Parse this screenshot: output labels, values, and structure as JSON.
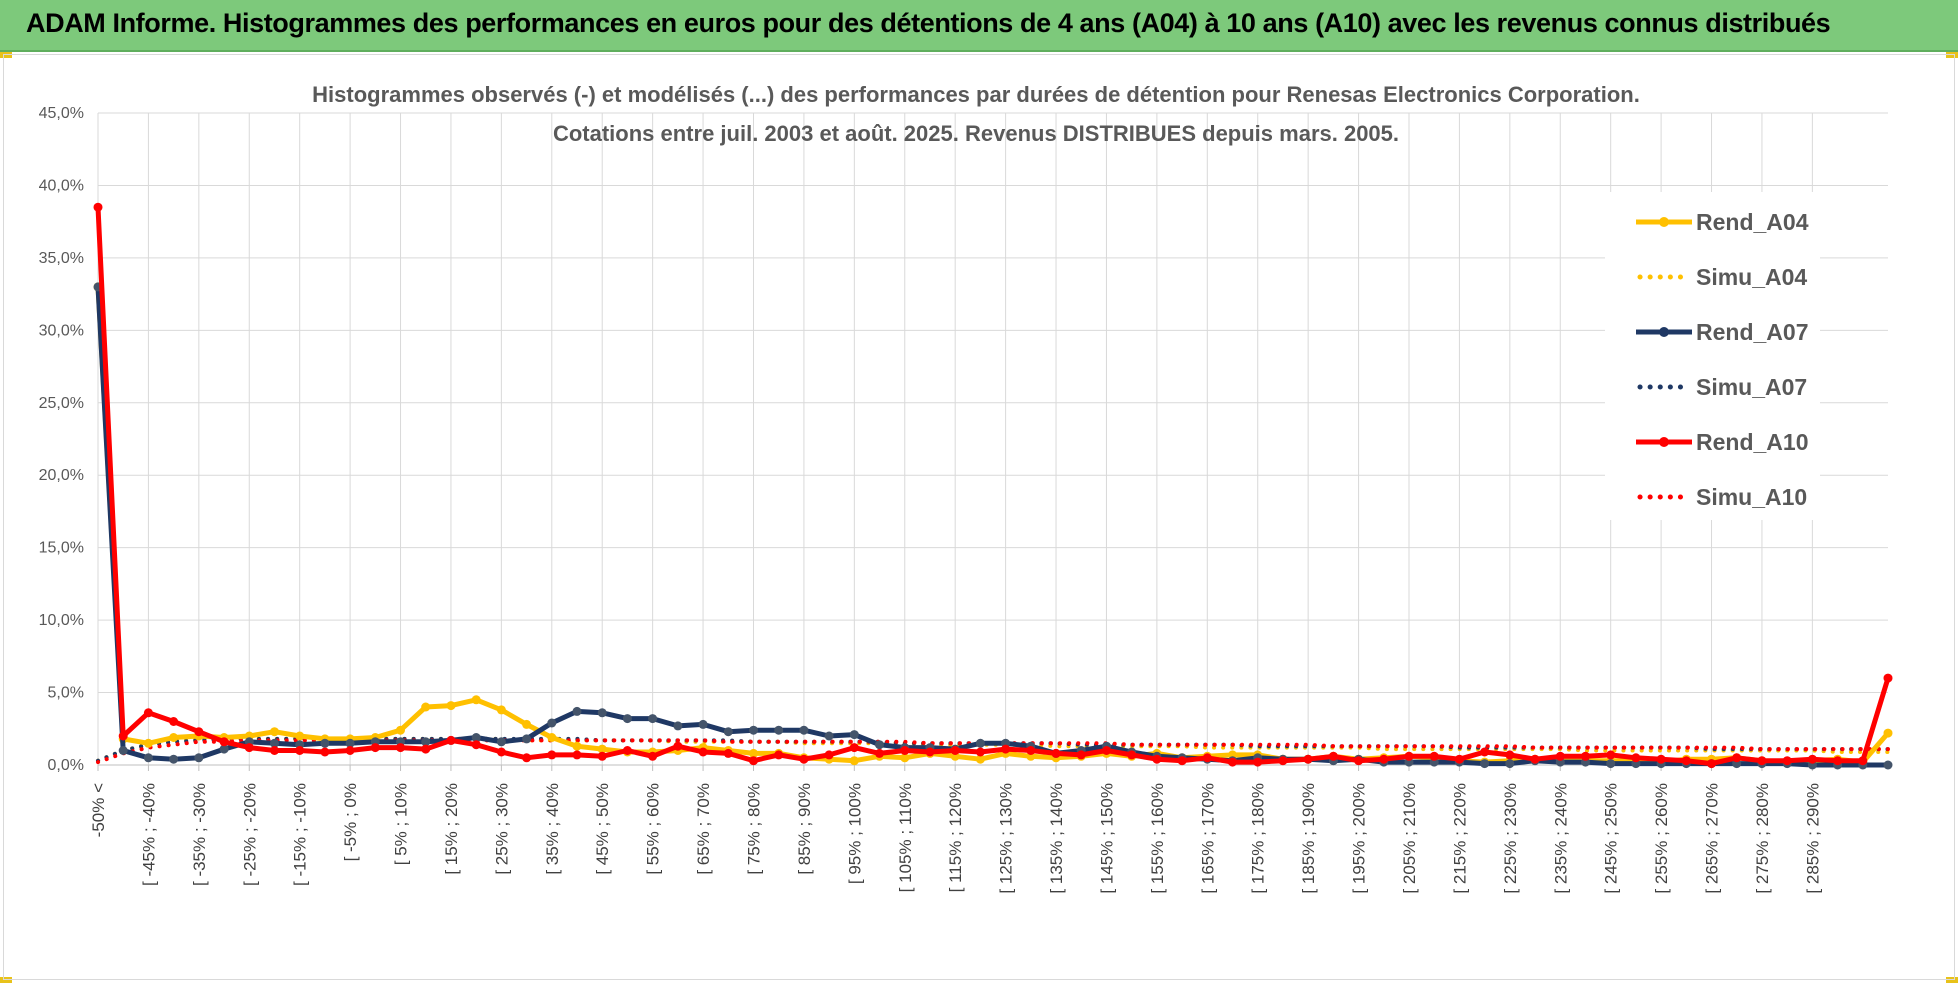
{
  "header": {
    "title": "ADAM Informe. Histogrammes des performances en euros pour des détentions de 4 ans (A04) à 10 ans (A10) avec les revenus connus distribués",
    "background": "#7dc97b"
  },
  "chart_data": {
    "type": "line",
    "title": "Histogrammes observés (-) et modélisés (...) des performances par durées de détention pour Renesas Electronics Corporation.",
    "subtitle": "Cotations entre juil. 2003 et août. 2025. Revenus DISTRIBUES depuis mars. 2005.",
    "xlabel": "",
    "ylabel": "",
    "ylim": [
      0,
      45
    ],
    "y_ticks": [
      "0,0%",
      "5,0%",
      "10,0%",
      "15,0%",
      "20,0%",
      "25,0%",
      "30,0%",
      "35,0%",
      "40,0%",
      "45,0%"
    ],
    "grid": true,
    "legend_position": "top-right",
    "x_tick_labels": [
      "-50% <",
      "[ -45% ; -40%",
      "[ -35% ; -30%",
      "[ -25% ; -20%",
      "[ -15% ; -10%",
      "[ -5% ; 0%",
      "[ 5% ; 10%",
      "[ 15% ; 20%",
      "[ 25% ; 30%",
      "[ 35% ; 40%",
      "[ 45% ; 50%",
      "[ 55% ; 60%",
      "[ 65% ; 70%",
      "[ 75% ; 80%",
      "[ 85% ; 90%",
      "[ 95% ; 100%",
      "[ 105% ; 110%",
      "[ 115% ; 120%",
      "[ 125% ; 130%",
      "[ 135% ; 140%",
      "[ 145% ; 150%",
      "[ 155% ; 160%",
      "[ 165% ; 170%",
      "[ 175% ; 180%",
      "[ 185% ; 190%",
      "[ 195% ; 200%",
      "[ 205% ; 210%",
      "[ 215% ; 220%",
      "[ 225% ; 230%",
      "[ 235% ; 240%",
      "[ 245% ; 250%",
      "[ 255% ; 260%",
      "[ 265% ; 270%",
      "[ 275% ; 280%",
      "[ 285% ; 290%"
    ],
    "series": [
      {
        "name": "Rend_A04",
        "style": "solid",
        "color": "#ffc000",
        "values": [
          33.0,
          1.8,
          1.5,
          1.9,
          2.0,
          1.9,
          2.0,
          2.3,
          2.0,
          1.8,
          1.8,
          1.9,
          2.4,
          4.0,
          4.1,
          4.5,
          3.8,
          2.8,
          1.9,
          1.3,
          1.1,
          0.9,
          0.9,
          1.0,
          1.2,
          1.0,
          0.8,
          0.8,
          0.5,
          0.4,
          0.3,
          0.6,
          0.5,
          0.8,
          0.6,
          0.4,
          0.8,
          0.6,
          0.5,
          0.6,
          0.8,
          0.6,
          0.8,
          0.5,
          0.6,
          0.7,
          0.7,
          0.4,
          0.4,
          0.6,
          0.4,
          0.5,
          0.6,
          0.5,
          0.3,
          0.2,
          0.3,
          0.4,
          0.4,
          0.3,
          0.3,
          0.3,
          0.2,
          0.4,
          0.4,
          0.5,
          0.3,
          0.2,
          0.3,
          0.4,
          0.2,
          2.2
        ]
      },
      {
        "name": "Simu_A04",
        "style": "dotted",
        "color": "#ffc000",
        "values": [
          0.3,
          1.0,
          1.4,
          1.7,
          1.8,
          1.8,
          1.8,
          1.8,
          1.8,
          1.8,
          1.8,
          1.8,
          1.8,
          1.8,
          1.8,
          1.8,
          1.8,
          1.7,
          1.7,
          1.7,
          1.7,
          1.7,
          1.7,
          1.6,
          1.6,
          1.6,
          1.6,
          1.6,
          1.5,
          1.5,
          1.5,
          1.5,
          1.5,
          1.4,
          1.4,
          1.4,
          1.4,
          1.4,
          1.3,
          1.3,
          1.3,
          1.3,
          1.3,
          1.3,
          1.2,
          1.2,
          1.2,
          1.2,
          1.2,
          1.2,
          1.2,
          1.1,
          1.1,
          1.1,
          1.1,
          1.1,
          1.1,
          1.1,
          1.1,
          1.0,
          1.0,
          1.0,
          1.0,
          1.0,
          1.0,
          1.0,
          1.0,
          1.0,
          1.0,
          0.9,
          0.9,
          0.9
        ]
      },
      {
        "name": "Rend_A07",
        "style": "solid",
        "color": "#1f3864",
        "values": [
          33.0,
          1.0,
          0.5,
          0.4,
          0.5,
          1.1,
          1.6,
          1.5,
          1.4,
          1.5,
          1.5,
          1.6,
          1.6,
          1.6,
          1.7,
          1.9,
          1.6,
          1.8,
          2.9,
          3.7,
          3.6,
          3.2,
          3.2,
          2.7,
          2.8,
          2.3,
          2.4,
          2.4,
          2.4,
          2.0,
          2.1,
          1.4,
          1.2,
          1.2,
          1.1,
          1.5,
          1.5,
          1.3,
          0.8,
          1.0,
          1.3,
          0.9,
          0.6,
          0.5,
          0.4,
          0.3,
          0.5,
          0.4,
          0.4,
          0.3,
          0.4,
          0.2,
          0.2,
          0.2,
          0.2,
          0.1,
          0.1,
          0.3,
          0.2,
          0.2,
          0.1,
          0.1,
          0.1,
          0.1,
          0.1,
          0.1,
          0.1,
          0.1,
          0.0,
          0.0,
          0.0,
          0.0
        ]
      },
      {
        "name": "Simu_A07",
        "style": "dotted",
        "color": "#1f3864",
        "values": [
          0.3,
          1.0,
          1.4,
          1.6,
          1.7,
          1.8,
          1.8,
          1.8,
          1.8,
          1.8,
          1.8,
          1.8,
          1.8,
          1.8,
          1.8,
          1.8,
          1.8,
          1.8,
          1.8,
          1.8,
          1.7,
          1.7,
          1.7,
          1.7,
          1.7,
          1.7,
          1.6,
          1.6,
          1.6,
          1.6,
          1.6,
          1.6,
          1.5,
          1.5,
          1.5,
          1.5,
          1.5,
          1.5,
          1.5,
          1.4,
          1.4,
          1.4,
          1.4,
          1.4,
          1.4,
          1.4,
          1.3,
          1.3,
          1.3,
          1.3,
          1.3,
          1.3,
          1.3,
          1.3,
          1.2,
          1.2,
          1.2,
          1.2,
          1.2,
          1.2,
          1.2,
          1.2,
          1.2,
          1.2,
          1.1,
          1.1,
          1.1,
          1.1,
          1.1,
          1.1,
          1.1,
          1.1
        ]
      },
      {
        "name": "Rend_A10",
        "style": "solid",
        "color": "#ff0000",
        "values": [
          38.5,
          2.0,
          3.6,
          3.0,
          2.3,
          1.6,
          1.2,
          1.0,
          1.0,
          0.9,
          1.0,
          1.2,
          1.2,
          1.1,
          1.7,
          1.4,
          0.9,
          0.5,
          0.7,
          0.7,
          0.6,
          1.0,
          0.6,
          1.3,
          0.9,
          0.8,
          0.3,
          0.7,
          0.4,
          0.7,
          1.2,
          0.8,
          1.0,
          0.9,
          1.0,
          0.9,
          1.1,
          1.0,
          0.8,
          0.7,
          1.0,
          0.7,
          0.4,
          0.3,
          0.5,
          0.2,
          0.2,
          0.3,
          0.4,
          0.6,
          0.3,
          0.4,
          0.6,
          0.6,
          0.4,
          0.9,
          0.7,
          0.4,
          0.6,
          0.6,
          0.7,
          0.5,
          0.4,
          0.3,
          0.1,
          0.5,
          0.3,
          0.3,
          0.4,
          0.3,
          0.3,
          6.0
        ]
      },
      {
        "name": "Simu_A10",
        "style": "dotted",
        "color": "#ff0000",
        "values": [
          0.2,
          0.8,
          1.2,
          1.4,
          1.6,
          1.6,
          1.7,
          1.7,
          1.7,
          1.7,
          1.7,
          1.7,
          1.7,
          1.7,
          1.7,
          1.7,
          1.7,
          1.7,
          1.7,
          1.7,
          1.7,
          1.7,
          1.7,
          1.7,
          1.7,
          1.6,
          1.6,
          1.6,
          1.6,
          1.6,
          1.6,
          1.6,
          1.6,
          1.5,
          1.5,
          1.5,
          1.5,
          1.5,
          1.5,
          1.5,
          1.5,
          1.4,
          1.4,
          1.4,
          1.4,
          1.4,
          1.4,
          1.4,
          1.4,
          1.3,
          1.3,
          1.3,
          1.3,
          1.3,
          1.3,
          1.3,
          1.3,
          1.2,
          1.2,
          1.2,
          1.2,
          1.2,
          1.2,
          1.2,
          1.2,
          1.2,
          1.1,
          1.1,
          1.1,
          1.1,
          1.1,
          1.1
        ]
      }
    ]
  }
}
